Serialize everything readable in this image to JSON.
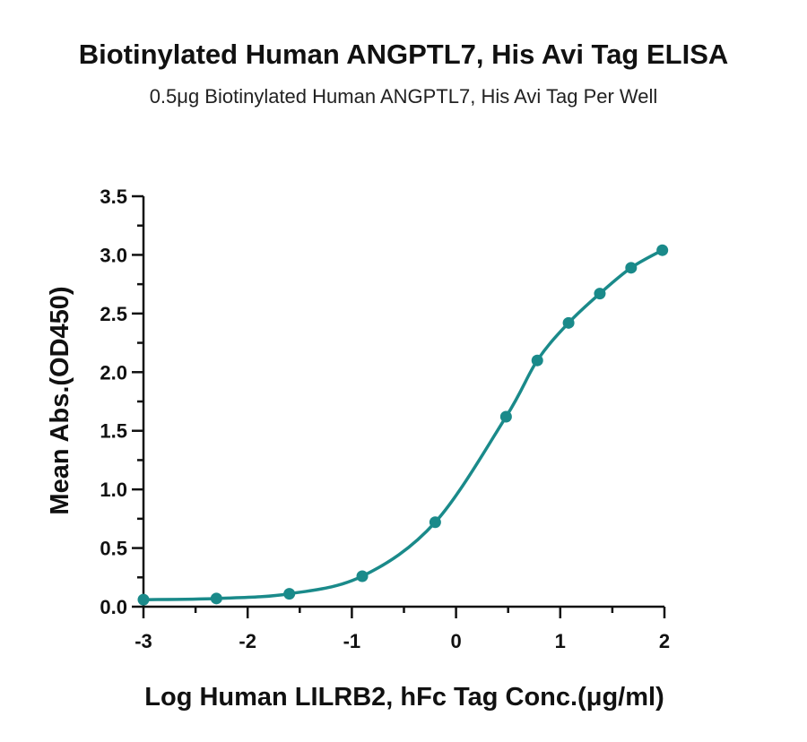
{
  "chart_data": {
    "type": "scatter",
    "title": "Biotinylated Human ANGPTL7, His Avi Tag ELISA",
    "subtitle": "0.5μg Biotinylated Human ANGPTL7, His Avi Tag Per Well",
    "xlabel": "Log Human LILRB2, hFc Tag Conc.(μg/ml)",
    "ylabel": "Mean Abs.(OD450)",
    "xlim": [
      -3,
      2
    ],
    "ylim": [
      0,
      3.5
    ],
    "x_ticks": [
      "-3",
      "-2",
      "-1",
      "0",
      "1",
      "2"
    ],
    "y_ticks": [
      "0.0",
      "0.5",
      "1.0",
      "1.5",
      "2.0",
      "2.5",
      "3.0",
      "3.5"
    ],
    "grid": false,
    "series": [
      {
        "color": "#1a8a8a",
        "x": [
          -3.0,
          -2.3,
          -1.6,
          -0.9,
          -0.2,
          0.48,
          0.78,
          1.08,
          1.38,
          1.68,
          1.98
        ],
        "y": [
          0.06,
          0.07,
          0.11,
          0.26,
          0.72,
          1.62,
          2.1,
          2.42,
          2.67,
          2.89,
          3.04
        ]
      }
    ]
  }
}
